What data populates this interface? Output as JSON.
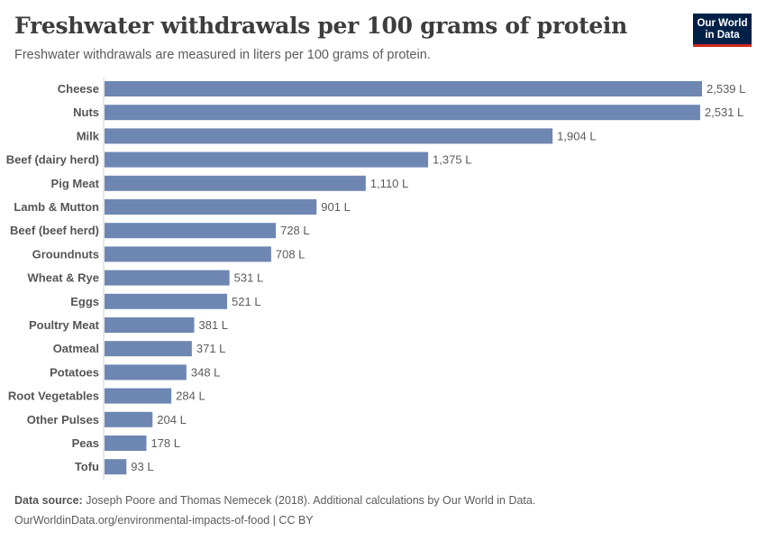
{
  "header": {
    "title": "Freshwater withdrawals per 100 grams of protein",
    "subtitle": "Freshwater withdrawals are measured in liters per 100 grams of protein."
  },
  "logo": {
    "line1": "Our World",
    "line2": "in Data",
    "colors": {
      "background": "#002147",
      "accent": "#ce261e"
    }
  },
  "footer": {
    "source_label": "Data source:",
    "source_text": "Joseph Poore and Thomas Nemecek (2018). Additional calculations by Our World in Data.",
    "url_line": "OurWorldinData.org/environmental-impacts-of-food | CC BY"
  },
  "chart_data": {
    "type": "bar",
    "orientation": "horizontal",
    "title": "Freshwater withdrawals per 100 grams of protein",
    "subtitle": "Freshwater withdrawals are measured in liters per 100 grams of protein.",
    "unit": "L",
    "bar_color": "#6d87b2",
    "categories": [
      "Cheese",
      "Nuts",
      "Milk",
      "Beef (dairy herd)",
      "Pig Meat",
      "Lamb & Mutton",
      "Beef (beef herd)",
      "Groundnuts",
      "Wheat & Rye",
      "Eggs",
      "Poultry Meat",
      "Oatmeal",
      "Potatoes",
      "Root Vegetables",
      "Other Pulses",
      "Peas",
      "Tofu"
    ],
    "values": [
      2539,
      2531,
      1904,
      1375,
      1110,
      901,
      728,
      708,
      531,
      521,
      381,
      371,
      348,
      284,
      204,
      178,
      93
    ],
    "value_labels": [
      "2,539 L",
      "2,531 L",
      "1,904 L",
      "1,375 L",
      "1,110 L",
      "901 L",
      "728 L",
      "708 L",
      "531 L",
      "521 L",
      "381 L",
      "371 L",
      "348 L",
      "284 L",
      "204 L",
      "178 L",
      "93 L"
    ]
  }
}
